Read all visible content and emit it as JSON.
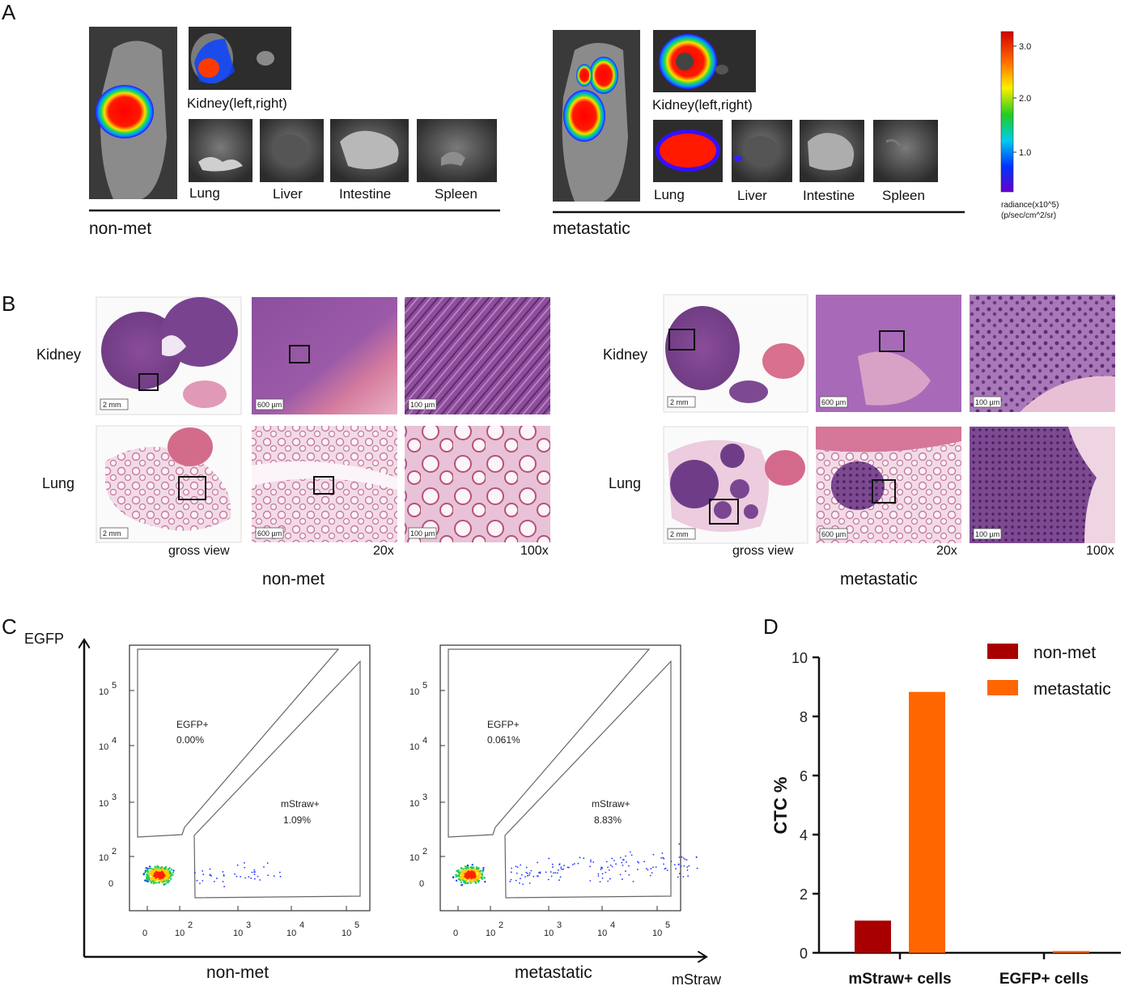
{
  "panelA": {
    "letter": "A",
    "groups": [
      {
        "name": "non-met",
        "kidney_label": "Kidney(left,right)",
        "organs": [
          "Lung",
          "Liver",
          "Intestine",
          "Spleen"
        ]
      },
      {
        "name": "metastatic",
        "kidney_label": "Kidney(left,right)",
        "organs": [
          "Lung",
          "Liver",
          "Intestine",
          "Spleen"
        ]
      }
    ],
    "colorbar": {
      "ticks": [
        "3.0",
        "2.0",
        "1.0"
      ],
      "unit_line1": "radiance(x10^5)",
      "unit_line2": "(p/sec/cm^2/sr)",
      "colors": [
        "#d40000",
        "#ff6600",
        "#ffee00",
        "#22cc22",
        "#00ccee",
        "#0033ff",
        "#6600cc"
      ]
    }
  },
  "panelB": {
    "letter": "B",
    "rows": [
      "Kidney",
      "Lung"
    ],
    "magnifications": [
      "gross view",
      "20x",
      "100x"
    ],
    "scalebars": [
      "2 mm",
      "600 µm",
      "100 µm"
    ],
    "groups": [
      "non-met",
      "metastatic"
    ]
  },
  "panelC": {
    "letter": "C",
    "y_axis": "EGFP",
    "x_axis": "mStraw",
    "ticks": [
      "10",
      "10",
      "10",
      "10",
      "0"
    ],
    "xticks": [
      "0",
      "10",
      "10",
      "10",
      "10"
    ],
    "exponents": [
      "5",
      "4",
      "3",
      "2"
    ],
    "plots": [
      {
        "group": "non-met",
        "egfp_label": "EGFP+",
        "egfp_value": "0.00%",
        "mstraw_label": "mStraw+",
        "mstraw_value": "1.09%"
      },
      {
        "group": "metastatic",
        "egfp_label": "EGFP+",
        "egfp_value": "0.061%",
        "mstraw_label": "mStraw+",
        "mstraw_value": "8.83%"
      }
    ]
  },
  "panelD": {
    "letter": "D",
    "chart_data": {
      "type": "bar",
      "categories": [
        "mStraw+ cells",
        "EGFP+ cells"
      ],
      "series": [
        {
          "name": "non-met",
          "color": "#a80000",
          "values": [
            1.09,
            0.0
          ]
        },
        {
          "name": "metastatic",
          "color": "#ff6600",
          "values": [
            8.83,
            0.061
          ]
        }
      ],
      "ylabel": "CTC %",
      "ylim": [
        0,
        10
      ],
      "yticks": [
        0,
        2,
        4,
        6,
        8,
        10
      ],
      "legend": "top-right"
    }
  }
}
